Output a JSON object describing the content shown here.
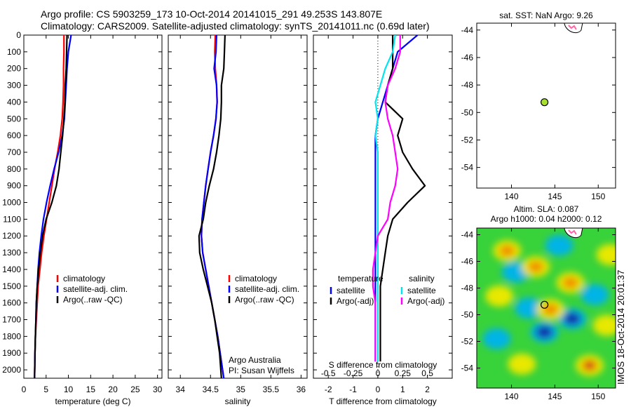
{
  "header": {
    "line1": "Argo profile: CS 5903259_173 10-Oct-2014 20141015_291 49.253S 143.807E",
    "line2": "Climatology: CARS2009. Satellite-adjusted climatology: synTS_20141011.nc (0.69d later)"
  },
  "stamp": "IMOS 18-Oct-2014 20:01:37",
  "colors": {
    "climatology": "#ff0000",
    "satellite": "#0000ff",
    "argo": "#000000",
    "temp_satellite": "#0000ff",
    "sal_satellite": "#00e5ee",
    "sal_argo_adj": "#ff00ff",
    "float_marker": "#a8e030"
  },
  "chart_data": [
    {
      "id": "temperature",
      "type": "line",
      "xlabel": "temperature (deg C)",
      "ylabel": "",
      "xlim": [
        0,
        31
      ],
      "ylim": [
        2050,
        0
      ],
      "xticks": [
        0,
        5,
        10,
        15,
        20,
        25,
        30
      ],
      "yticks": [
        0,
        100,
        200,
        300,
        400,
        500,
        600,
        700,
        800,
        900,
        1000,
        1100,
        1200,
        1300,
        1400,
        1500,
        1600,
        1700,
        1800,
        1900,
        2000
      ],
      "legend": {
        "position": "lower-center",
        "entries": [
          "climatology",
          "satellite-adj. clim.",
          "Argo(..raw -QC)"
        ]
      },
      "series": [
        {
          "name": "climatology",
          "color_key": "climatology",
          "x": [
            9.0,
            9.0,
            8.9,
            8.9,
            8.8,
            8.6,
            8.2,
            7.6,
            6.9,
            6.3,
            5.7,
            5.1,
            4.5,
            4.0,
            3.6,
            3.2,
            3.0,
            2.8,
            2.6,
            2.5,
            2.4
          ],
          "y": [
            0,
            100,
            200,
            300,
            400,
            500,
            600,
            700,
            800,
            900,
            1000,
            1100,
            1200,
            1300,
            1400,
            1500,
            1600,
            1700,
            1800,
            1900,
            2050
          ]
        },
        {
          "name": "satellite-adj. clim.",
          "color_key": "satellite",
          "x": [
            10.6,
            10.0,
            9.7,
            9.5,
            9.3,
            9.1,
            8.6,
            7.8,
            6.8,
            5.9,
            5.1,
            4.4,
            3.9,
            3.5,
            3.2,
            3.0,
            2.8,
            2.7,
            2.6,
            2.5,
            2.4
          ],
          "y": [
            0,
            100,
            200,
            300,
            400,
            500,
            600,
            700,
            800,
            900,
            1000,
            1100,
            1200,
            1300,
            1400,
            1500,
            1600,
            1700,
            1800,
            1900,
            2050
          ]
        },
        {
          "name": "Argo(..raw -QC)",
          "color_key": "argo",
          "x": [
            9.7,
            9.6,
            9.5,
            9.3,
            9.2,
            9.0,
            8.7,
            8.3,
            7.9,
            7.3,
            6.3,
            5.0,
            4.2,
            3.7,
            3.3,
            3.0,
            2.8,
            2.7,
            2.6,
            2.5,
            2.4
          ],
          "y": [
            0,
            100,
            200,
            300,
            400,
            500,
            600,
            700,
            800,
            900,
            1000,
            1100,
            1200,
            1300,
            1400,
            1500,
            1600,
            1700,
            1800,
            1900,
            2050
          ]
        }
      ]
    },
    {
      "id": "salinity",
      "type": "line",
      "xlabel": "salinity",
      "ylabel": "",
      "xlim": [
        33.8,
        36.1
      ],
      "ylim": [
        2050,
        0
      ],
      "xticks": [
        34,
        34.5,
        35,
        35.5,
        36
      ],
      "xticklabels": [
        "34",
        "34.5",
        "35",
        "35.5",
        "36"
      ],
      "legend": {
        "position": "lower-right",
        "entries": [
          "climatology",
          "satellite-adj. clim.",
          "Argo(..raw -QC)"
        ]
      },
      "annotation": [
        "Argo Australia",
        "PI: Susan Wijffels"
      ],
      "series": [
        {
          "name": "climatology",
          "color_key": "climatology",
          "x": [
            34.58,
            34.57,
            34.58,
            34.6,
            34.61,
            34.59,
            34.55,
            34.5,
            34.46,
            34.42,
            34.39,
            34.36,
            34.35,
            34.37,
            34.42,
            34.47,
            34.52,
            34.57,
            34.62,
            34.66,
            34.72
          ],
          "y": [
            0,
            100,
            200,
            300,
            400,
            500,
            600,
            700,
            800,
            900,
            1000,
            1100,
            1200,
            1300,
            1400,
            1500,
            1600,
            1700,
            1800,
            1900,
            2050
          ]
        },
        {
          "name": "satellite-adj. clim.",
          "color_key": "satellite",
          "x": [
            34.6,
            34.59,
            34.56,
            34.6,
            34.61,
            34.59,
            34.55,
            34.5,
            34.46,
            34.42,
            34.39,
            34.36,
            34.35,
            34.37,
            34.42,
            34.47,
            34.52,
            34.57,
            34.62,
            34.66,
            34.72
          ],
          "y": [
            0,
            100,
            200,
            300,
            400,
            500,
            600,
            700,
            800,
            900,
            1000,
            1100,
            1200,
            1300,
            1400,
            1500,
            1600,
            1700,
            1800,
            1900,
            2050
          ]
        },
        {
          "name": "Argo(..raw -QC)",
          "color_key": "argo",
          "x": [
            34.74,
            34.73,
            34.72,
            34.68,
            34.68,
            34.67,
            34.64,
            34.6,
            34.55,
            34.48,
            34.42,
            34.38,
            34.31,
            34.32,
            34.38,
            34.45,
            34.52,
            34.57,
            34.61,
            34.65,
            34.68
          ],
          "y": [
            0,
            100,
            200,
            300,
            400,
            500,
            600,
            700,
            800,
            900,
            1000,
            1100,
            1200,
            1300,
            1400,
            1500,
            1600,
            1700,
            1800,
            1900,
            2050
          ]
        }
      ]
    },
    {
      "id": "difference",
      "type": "line",
      "xlabel": "T difference from climatology",
      "xlabel_top": "S difference from climatology",
      "ylabel": "",
      "xlim": [
        -2.6,
        3.0
      ],
      "ylim": [
        2050,
        0
      ],
      "xticks": [
        -2,
        -1,
        0,
        1,
        2
      ],
      "xticks_s": [
        -2,
        -1,
        0,
        1,
        2
      ],
      "xticklabels_s": [
        "-0.5",
        "-0.25",
        "0",
        "0.25",
        "0.5"
      ],
      "legend": {
        "position": "lower-center",
        "groups": [
          {
            "title": "temperature",
            "entries": [
              "satellite",
              "Argo(-adj)"
            ]
          },
          {
            "title": "salinity",
            "entries": [
              "satellite",
              "Argo(-adj)"
            ]
          }
        ]
      },
      "series": [
        {
          "name": "temperature satellite",
          "color_key": "temp_satellite",
          "x": [
            1.6,
            0.8,
            0.6,
            0.4,
            0.2,
            0.0,
            -0.1,
            -0.1,
            -0.1,
            -0.1,
            -0.1,
            -0.1,
            -0.1,
            -0.1,
            -0.1,
            -0.1,
            -0.1,
            -0.1,
            -0.1,
            -0.1,
            -0.1
          ],
          "y": [
            0,
            100,
            200,
            300,
            400,
            500,
            600,
            700,
            800,
            900,
            1000,
            1100,
            1200,
            1300,
            1400,
            1500,
            1600,
            1700,
            1800,
            1900,
            1950
          ]
        },
        {
          "name": "temperature Argo(-adj)",
          "color_key": "argo",
          "x": [
            0.6,
            0.6,
            0.6,
            0.4,
            0.3,
            1.0,
            0.8,
            1.0,
            1.4,
            1.9,
            1.2,
            0.6,
            0.4,
            0.3,
            0.2,
            0.1,
            0.1,
            0.1,
            0.1,
            0.1,
            0.1
          ],
          "y": [
            0,
            100,
            200,
            300,
            400,
            500,
            600,
            700,
            800,
            900,
            1000,
            1100,
            1200,
            1300,
            1400,
            1500,
            1600,
            1700,
            1800,
            1900,
            1950
          ]
        },
        {
          "name": "salinity satellite",
          "color_key": "sal_satellite",
          "x": [
            0.7,
            0.6,
            0.3,
            0.1,
            -0.1,
            0.0,
            -0.1,
            0.0,
            0.0,
            0.0,
            0.0,
            0.0,
            0.0,
            0.0,
            0.0,
            0.0,
            0.0,
            0.0,
            0.0,
            0.0,
            0.0
          ],
          "y": [
            0,
            100,
            200,
            300,
            400,
            500,
            600,
            700,
            800,
            900,
            1000,
            1100,
            1200,
            1300,
            1400,
            1500,
            1600,
            1700,
            1800,
            1900,
            1950
          ]
        },
        {
          "name": "salinity Argo(-adj)",
          "color_key": "sal_argo_adj",
          "x": [
            0.9,
            0.9,
            0.7,
            0.4,
            0.3,
            0.4,
            0.6,
            0.7,
            0.8,
            0.7,
            0.5,
            0.4,
            0.0,
            -0.1,
            -0.2,
            -0.2,
            -0.1,
            -0.1,
            -0.1,
            -0.1,
            -0.1
          ],
          "y": [
            0,
            100,
            200,
            300,
            400,
            500,
            600,
            700,
            800,
            900,
            1000,
            1100,
            1200,
            1300,
            1400,
            1500,
            1600,
            1700,
            1800,
            1900,
            1950
          ]
        }
      ]
    },
    {
      "id": "sst-map",
      "type": "scatter",
      "title": "sat. SST: NaN Argo: 9.26",
      "xlim": [
        136,
        152
      ],
      "ylim": [
        -55.5,
        -43.5
      ],
      "xticks": [
        140,
        145,
        150
      ],
      "yticks": [
        -44,
        -46,
        -48,
        -50,
        -52,
        -54
      ],
      "points": [
        {
          "x": 143.807,
          "y": -49.253
        }
      ]
    },
    {
      "id": "sla-map",
      "type": "heatmap",
      "title": "Altim. SLA: 0.087",
      "subtitle": "Argo h1000: 0.04 h2000: 0.12",
      "xlim": [
        136,
        152
      ],
      "ylim": [
        -55.5,
        -43.5
      ],
      "xticks": [
        140,
        145,
        150
      ],
      "yticks": [
        -44,
        -46,
        -48,
        -50,
        -52,
        -54
      ],
      "points": [
        {
          "x": 143.807,
          "y": -49.253
        }
      ],
      "anomalies": [
        {
          "x": 140.5,
          "y": -46.8,
          "v": -0.6
        },
        {
          "x": 142.0,
          "y": -49.5,
          "v": -0.5
        },
        {
          "x": 143.8,
          "y": -51.3,
          "v": -1.0
        },
        {
          "x": 147.0,
          "y": -50.3,
          "v": -0.8
        },
        {
          "x": 149.6,
          "y": -48.5,
          "v": -0.5
        },
        {
          "x": 145.5,
          "y": -44.8,
          "v": -0.5
        },
        {
          "x": 138.3,
          "y": -51.8,
          "v": -0.4
        },
        {
          "x": 139.5,
          "y": -45.2,
          "v": 0.6
        },
        {
          "x": 142.8,
          "y": -46.4,
          "v": 0.7
        },
        {
          "x": 144.5,
          "y": -49.6,
          "v": 0.8
        },
        {
          "x": 146.8,
          "y": -47.6,
          "v": 0.6
        },
        {
          "x": 149.0,
          "y": -53.8,
          "v": 1.0
        },
        {
          "x": 151.0,
          "y": -50.8,
          "v": 0.5
        },
        {
          "x": 138.6,
          "y": -48.6,
          "v": 0.4
        },
        {
          "x": 141.2,
          "y": -53.7,
          "v": 0.4
        },
        {
          "x": 151.4,
          "y": -45.5,
          "v": 0.4
        }
      ]
    }
  ]
}
